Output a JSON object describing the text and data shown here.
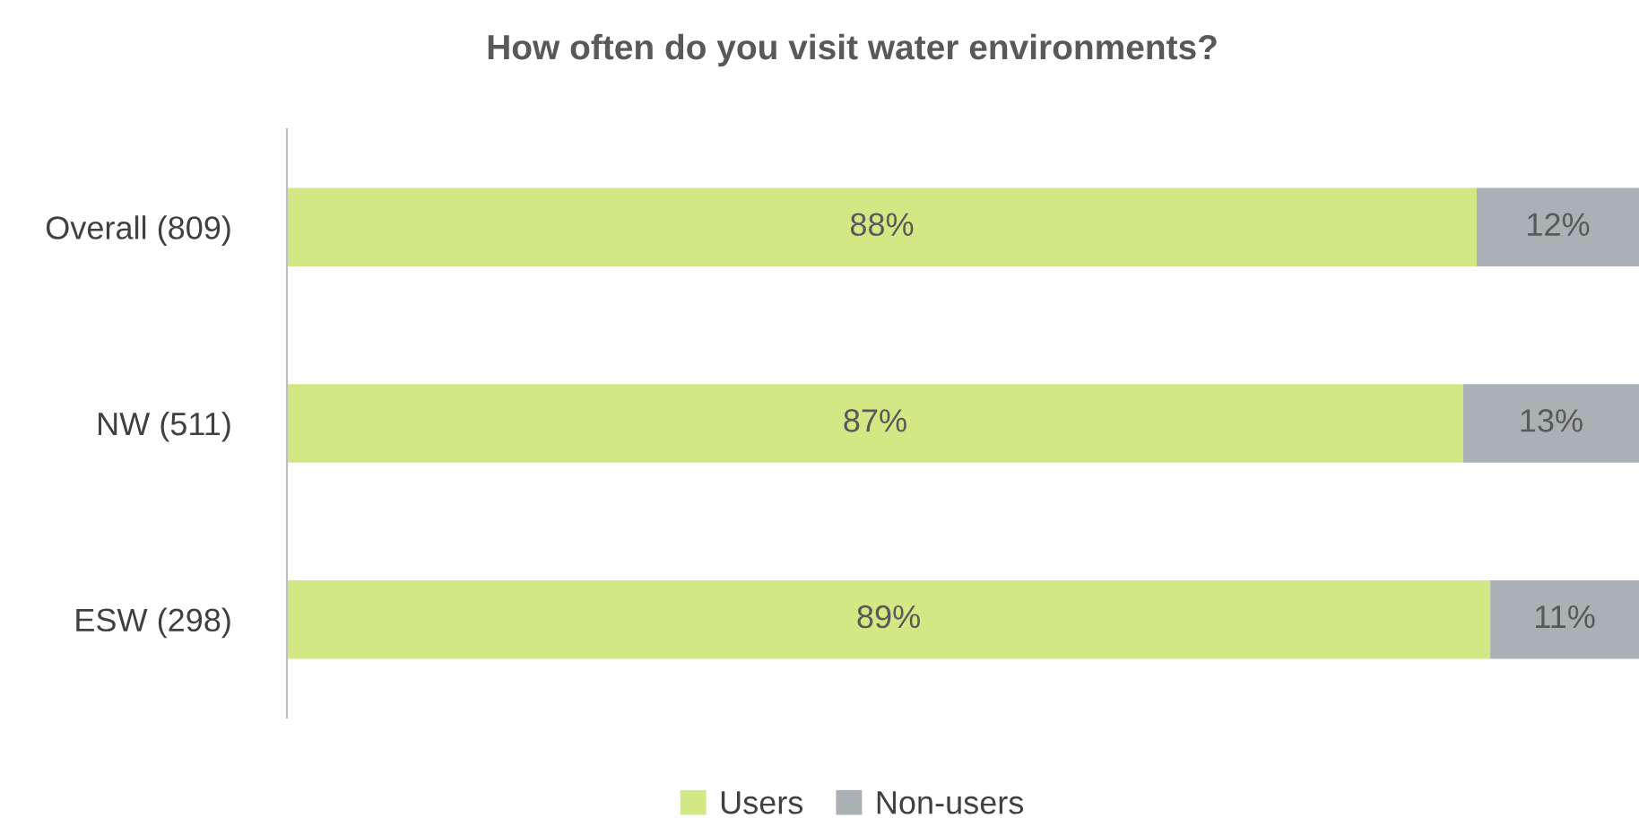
{
  "chart_data": {
    "type": "bar",
    "title": "How often do you visit water environments?",
    "orientation": "horizontal",
    "stacked": true,
    "categories": [
      "Overall (809)",
      "NW (511)",
      "ESW (298)"
    ],
    "series": [
      {
        "name": "Users",
        "color": "#d1e884",
        "values": [
          88,
          87,
          89
        ],
        "value_labels": [
          "88%",
          "87%",
          "89%"
        ]
      },
      {
        "name": "Non-users",
        "color": "#a9b1b4",
        "values": [
          12,
          13,
          11
        ],
        "value_labels": [
          "12%",
          "13%",
          "11%"
        ]
      }
    ],
    "xlim": [
      0,
      100
    ],
    "tick_labels": "y",
    "grid": false,
    "legend": "bottom"
  }
}
